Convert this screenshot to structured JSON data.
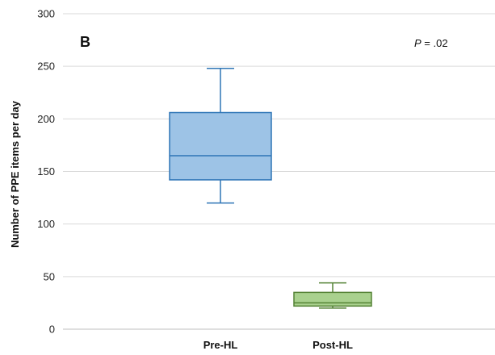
{
  "chart_data": {
    "type": "box",
    "panel_label": "B",
    "annotation": {
      "p_label": "P",
      "p_text": " = .02"
    },
    "ylabel": "Number of PPE items per day",
    "xlabel": "",
    "ylim": [
      0,
      300
    ],
    "yticks": [
      0,
      50,
      100,
      150,
      200,
      250,
      300
    ],
    "grid": true,
    "categories": [
      "Pre-HL",
      "Post-HL"
    ],
    "boxes": [
      {
        "category": "Pre-HL",
        "min": 120,
        "q1": 142,
        "median": 165,
        "q3": 206,
        "max": 248,
        "fill": "#9dc3e6",
        "stroke": "#2e75b6"
      },
      {
        "category": "Post-HL",
        "min": 20,
        "q1": 22,
        "median": 25,
        "q3": 35,
        "max": 44,
        "fill": "#a9d18e",
        "stroke": "#548235"
      }
    ]
  }
}
